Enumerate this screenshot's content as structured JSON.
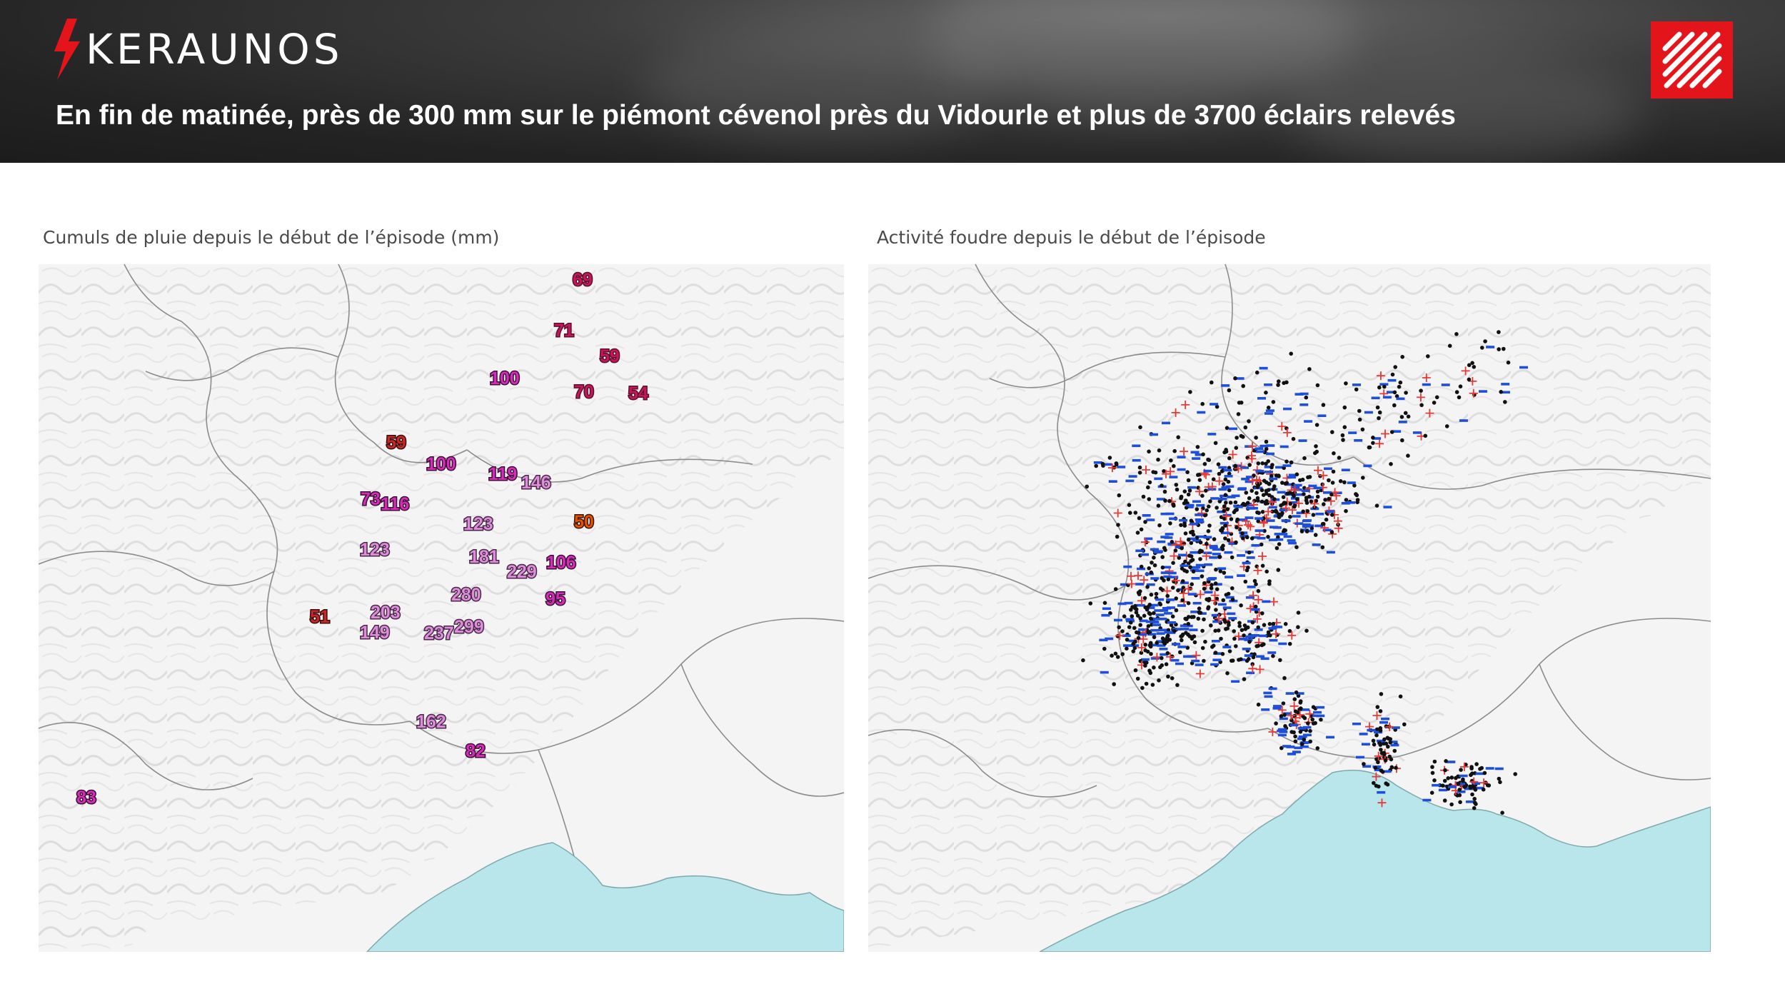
{
  "header": {
    "logo_text": "KERAUNOS",
    "headline": "En fin de matinée, près de 300 mm sur le piémont cévenol près du Vidourle et plus de 3700 éclairs relevés",
    "accent_color": "#e3151b"
  },
  "left_panel": {
    "title": "Cumuls de pluie depuis le début de l’épisode (mm)",
    "rain_values": [
      {
        "value": "69",
        "color": "#c2185b",
        "outline": "#5a0f28"
      },
      {
        "value": "71",
        "color": "#c2185b",
        "outline": "#5a0f28"
      },
      {
        "value": "59",
        "color": "#c2185b",
        "outline": "#5a0f28"
      },
      {
        "value": "100",
        "color": "#d12fb5",
        "outline": "#3d0d35"
      },
      {
        "value": "70",
        "color": "#c2185b",
        "outline": "#5a0f28"
      },
      {
        "value": "54",
        "color": "#c2185b",
        "outline": "#5a0f28"
      },
      {
        "value": "59",
        "color": "#c62828",
        "outline": "#3b0a0a"
      },
      {
        "value": "100",
        "color": "#d12fb5",
        "outline": "#3d0d35"
      },
      {
        "value": "119",
        "color": "#d12fb5",
        "outline": "#3d0d35"
      },
      {
        "value": "146",
        "color": "#dc8fd8",
        "outline": "#4a2648"
      },
      {
        "value": "73",
        "color": "#d12fb5",
        "outline": "#3d0d35"
      },
      {
        "value": "116",
        "color": "#d12fb5",
        "outline": "#3d0d35"
      },
      {
        "value": "123",
        "color": "#dc8fd8",
        "outline": "#4a2648"
      },
      {
        "value": "50",
        "color": "#e65100",
        "outline": "#3b1500"
      },
      {
        "value": "123",
        "color": "#dc8fd8",
        "outline": "#4a2648"
      },
      {
        "value": "181",
        "color": "#dc8fd8",
        "outline": "#4a2648"
      },
      {
        "value": "229",
        "color": "#dc8fd8",
        "outline": "#4a2648"
      },
      {
        "value": "106",
        "color": "#d12fb5",
        "outline": "#3d0d35"
      },
      {
        "value": "280",
        "color": "#dc8fd8",
        "outline": "#4a2648"
      },
      {
        "value": "95",
        "color": "#d12fb5",
        "outline": "#3d0d35"
      },
      {
        "value": "51",
        "color": "#c62828",
        "outline": "#3b0a0a"
      },
      {
        "value": "203",
        "color": "#dc8fd8",
        "outline": "#4a2648"
      },
      {
        "value": "149",
        "color": "#dc8fd8",
        "outline": "#4a2648"
      },
      {
        "value": "237",
        "color": "#dc8fd8",
        "outline": "#4a2648"
      },
      {
        "value": "299",
        "color": "#dc8fd8",
        "outline": "#4a2648"
      },
      {
        "value": "162",
        "color": "#dc8fd8",
        "outline": "#4a2648"
      },
      {
        "value": "82",
        "color": "#d12fb5",
        "outline": "#3d0d35"
      },
      {
        "value": "83",
        "color": "#d12fb5",
        "outline": "#3d0d35"
      }
    ]
  },
  "right_panel": {
    "title": "Activité foudre depuis le début de l’épisode",
    "lightning_colors": {
      "cloud_to_cloud": "#111111",
      "negative": "#1f4fd8",
      "positive": "#e53935"
    }
  },
  "map_colors": {
    "sea": "#b8e6ea",
    "land": "#f4f4f4",
    "relief": "#d6d6d6",
    "border": "#8c8c8c"
  }
}
